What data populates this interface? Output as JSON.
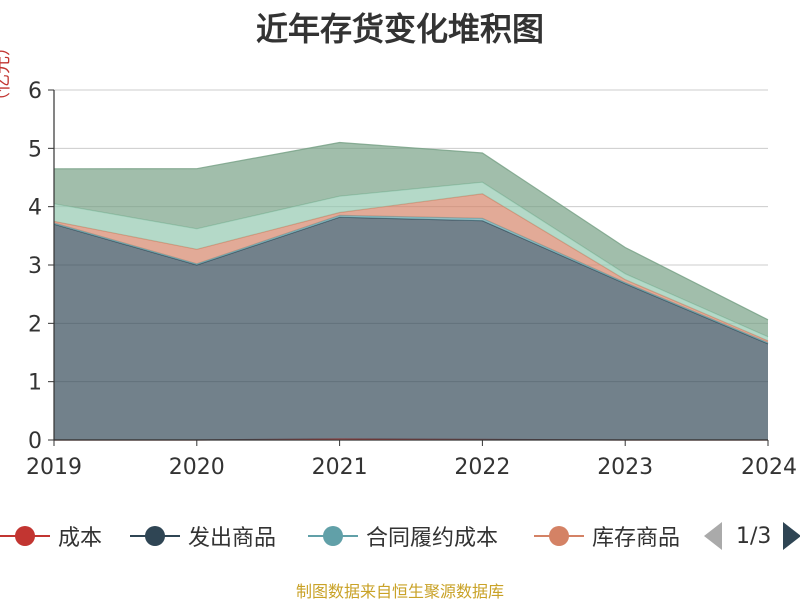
{
  "chart_data": {
    "type": "area",
    "stacked": true,
    "title": "近年存货变化堆积图",
    "ylabel": "（亿元）",
    "categories": [
      "2019",
      "2020",
      "2021",
      "2022",
      "2023",
      "2024"
    ],
    "ylim": [
      0,
      6
    ],
    "yticks": [
      0,
      1,
      2,
      3,
      4,
      5,
      6
    ],
    "grid": true,
    "legend_position": "bottom",
    "series": [
      {
        "name": "成本",
        "color": "#c23531",
        "values": [
          0.0,
          0.0,
          0.02,
          0.01,
          0.0,
          0.0
        ]
      },
      {
        "name": "发出商品",
        "color": "#2f4554",
        "values": [
          3.7,
          3.0,
          3.8,
          3.75,
          2.68,
          1.65
        ]
      },
      {
        "name": "合同履约成本",
        "color": "#61a0a8",
        "values": [
          0.02,
          0.02,
          0.03,
          0.04,
          0.02,
          0.02
        ]
      },
      {
        "name": "库存商品",
        "color": "#d48265",
        "values": [
          0.03,
          0.25,
          0.05,
          0.42,
          0.05,
          0.03
        ]
      },
      {
        "name": "",
        "color": "#91c7ae",
        "values": [
          0.3,
          0.35,
          0.28,
          0.2,
          0.1,
          0.07
        ]
      },
      {
        "name": "",
        "color": "#749f83",
        "values": [
          0.6,
          1.03,
          0.92,
          0.5,
          0.45,
          0.29
        ]
      }
    ]
  },
  "legend": {
    "visible_items": [
      {
        "label": "成本",
        "color": "#c23531"
      },
      {
        "label": "发出商品",
        "color": "#2f4554"
      },
      {
        "label": "合同履约成本",
        "color": "#61a0a8"
      },
      {
        "label": "库存商品",
        "color": "#d48265"
      }
    ],
    "page_text": "1/3"
  },
  "source_text": "制图数据来自恒生聚源数据库"
}
